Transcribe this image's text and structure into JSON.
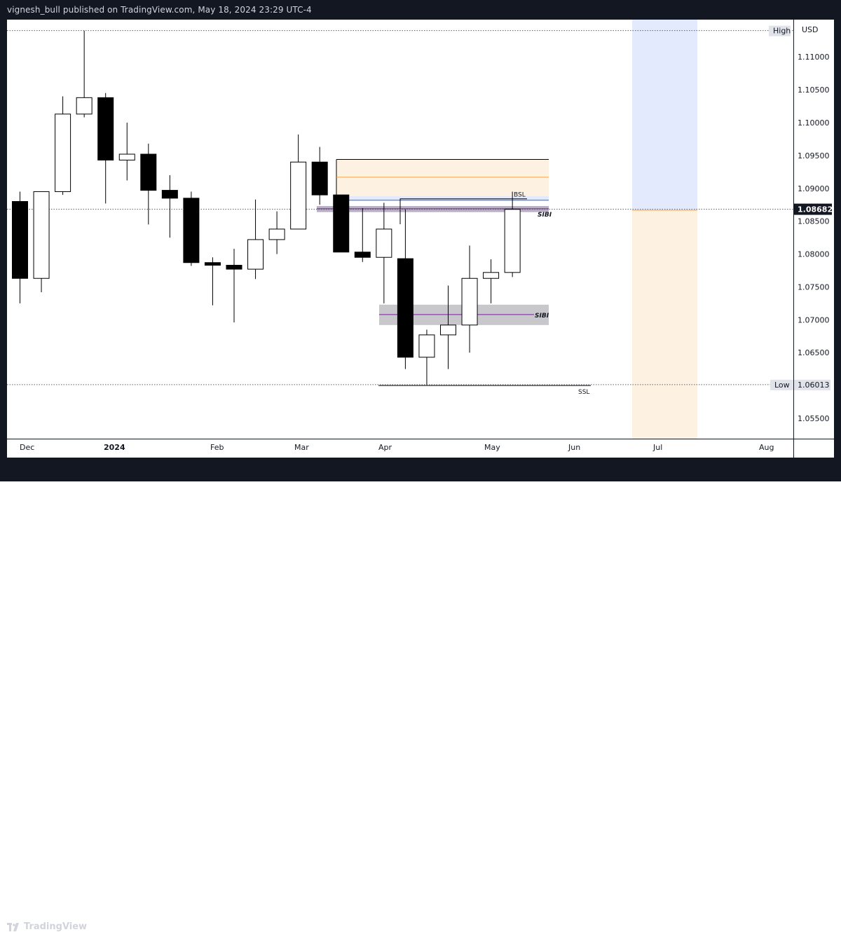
{
  "header": {
    "published_text": "vignesh_bull published on TradingView.com, May 18, 2024 23:29 UTC-4"
  },
  "footer": {
    "logo_text": "TradingView"
  },
  "chart_data": {
    "type": "candlestick",
    "currency": "USD",
    "y_ticks": [
      "1.11000",
      "1.10500",
      "1.10000",
      "1.09500",
      "1.09000",
      "1.08500",
      "1.08000",
      "1.07500",
      "1.07000",
      "1.06500",
      "1.06000",
      "1.05500"
    ],
    "ylim": [
      1.0515,
      1.1155
    ],
    "x_tick_labels": [
      "Dec",
      "2024",
      "Feb",
      "Mar",
      "Apr",
      "May",
      "Jun",
      "Jul",
      "Aug"
    ],
    "current_price": {
      "label": "1.08682",
      "value": 1.08682
    },
    "high": {
      "label": "High",
      "value": 1.114
    },
    "low": {
      "label": "Low",
      "value_label": "1.06013",
      "value": 1.06013
    },
    "candles": [
      {
        "o": 1.088,
        "h": 1.0895,
        "l": 1.0725,
        "c": 1.0763
      },
      {
        "o": 1.0763,
        "h": 1.0895,
        "l": 1.0742,
        "c": 1.0895
      },
      {
        "o": 1.0895,
        "h": 1.104,
        "l": 1.089,
        "c": 1.1013
      },
      {
        "o": 1.1013,
        "h": 1.114,
        "l": 1.1008,
        "c": 1.1038
      },
      {
        "o": 1.1038,
        "h": 1.1045,
        "l": 1.0877,
        "c": 1.0943
      },
      {
        "o": 1.0943,
        "h": 1.1,
        "l": 1.0912,
        "c": 1.0952
      },
      {
        "o": 1.0952,
        "h": 1.0968,
        "l": 1.0845,
        "c": 1.0897
      },
      {
        "o": 1.0897,
        "h": 1.092,
        "l": 1.0825,
        "c": 1.0885
      },
      {
        "o": 1.0885,
        "h": 1.0895,
        "l": 1.0782,
        "c": 1.0787
      },
      {
        "o": 1.0787,
        "h": 1.0795,
        "l": 1.0722,
        "c": 1.0783
      },
      {
        "o": 1.0783,
        "h": 1.0808,
        "l": 1.0696,
        "c": 1.0777
      },
      {
        "o": 1.0777,
        "h": 1.0883,
        "l": 1.0762,
        "c": 1.0822
      },
      {
        "o": 1.0822,
        "h": 1.0865,
        "l": 1.08,
        "c": 1.0838
      },
      {
        "o": 1.0838,
        "h": 1.0982,
        "l": 1.0838,
        "c": 1.094
      },
      {
        "o": 1.094,
        "h": 1.0963,
        "l": 1.0875,
        "c": 1.089
      },
      {
        "o": 1.089,
        "h": 1.089,
        "l": 1.0803,
        "c": 1.0803
      },
      {
        "o": 1.0803,
        "h": 1.087,
        "l": 1.0788,
        "c": 1.0795
      },
      {
        "o": 1.0795,
        "h": 1.0878,
        "l": 1.0725,
        "c": 1.0838
      },
      {
        "o": 1.0793,
        "h": 1.0868,
        "l": 1.0625,
        "c": 1.0643
      },
      {
        "o": 1.0643,
        "h": 1.0685,
        "l": 1.0601,
        "c": 1.0677
      },
      {
        "o": 1.0677,
        "h": 1.0752,
        "l": 1.0625,
        "c": 1.0692
      },
      {
        "o": 1.0692,
        "h": 1.0813,
        "l": 1.065,
        "c": 1.0763
      },
      {
        "o": 1.0763,
        "h": 1.0792,
        "l": 1.0725,
        "c": 1.0772
      },
      {
        "o": 1.0772,
        "h": 1.0895,
        "l": 1.0765,
        "c": 1.0868
      }
    ],
    "annotations": {
      "bsl": {
        "label": "BSL",
        "value": 1.0883
      },
      "ssl": {
        "label": "SSL",
        "value": 1.0601
      },
      "sibi_upper": {
        "label": "SIBI",
        "top": 1.0872,
        "bottom": 1.0866,
        "mid": 1.0869
      },
      "sibi_lower": {
        "label": "SIBI",
        "top": 1.0723,
        "bottom": 1.0692,
        "mid": 1.0708
      },
      "short_position": {
        "entry": 1.0888,
        "stop": 1.0944,
        "orange_line": 1.0917
      }
    },
    "colors": {
      "bg": "#ffffff",
      "frame": "#131722",
      "candle_up_body": "#ffffff",
      "candle_down_body": "#000000",
      "candle_border": "#000000",
      "sibi_fill": "#c8c8cc",
      "sibi_line": "#7b1fa2",
      "pos_blue": "#e3eafd",
      "pos_orange": "#fdf1e2",
      "orange_line": "#f6a23c",
      "blue_line": "#2962ff",
      "price_tag": "#131722",
      "axis_text": "#131722"
    }
  }
}
